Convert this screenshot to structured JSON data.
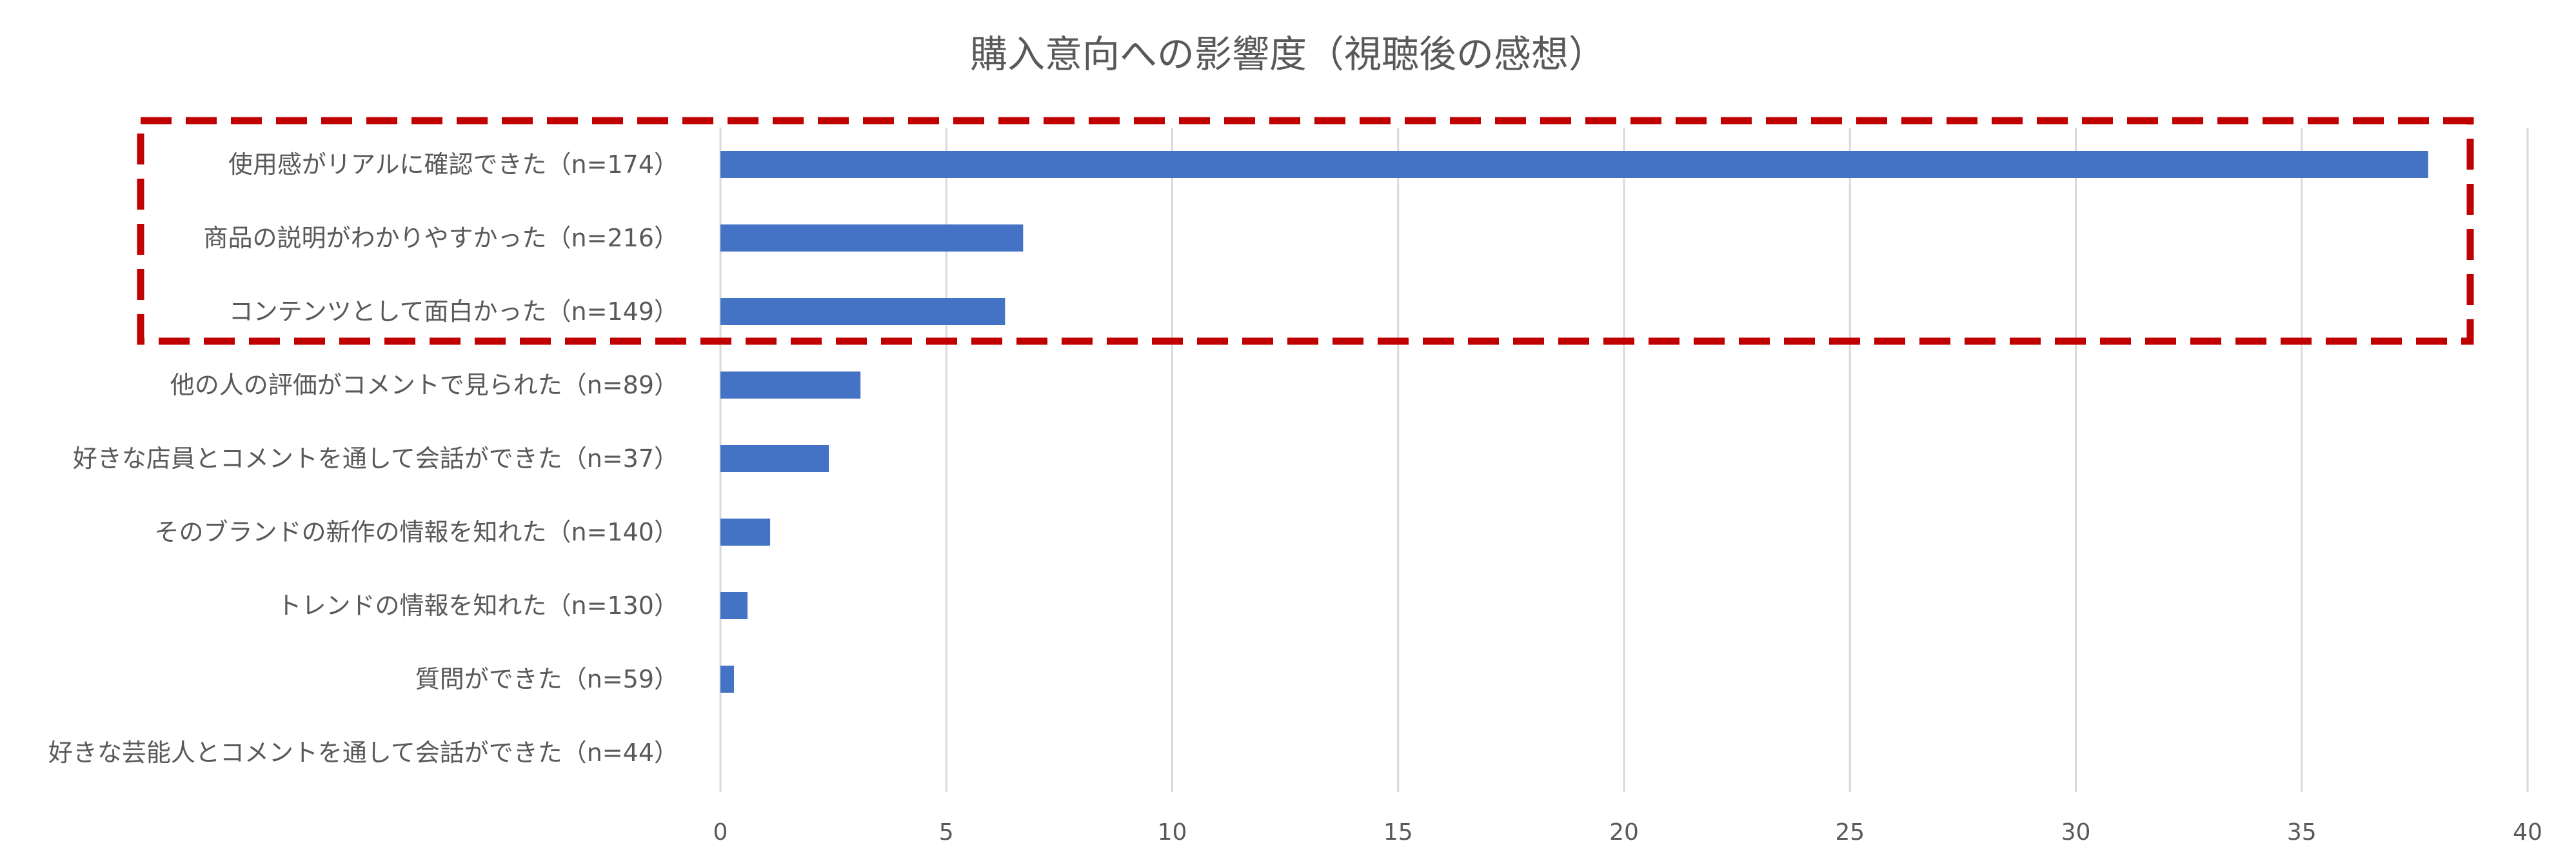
{
  "chart_data": {
    "type": "bar",
    "orientation": "horizontal",
    "title": "購入意向への影響度（視聴後の感想）",
    "xlabel": "",
    "ylabel": "",
    "xlim": [
      0,
      40
    ],
    "x_ticks": [
      0,
      5,
      10,
      15,
      20,
      25,
      30,
      35,
      40
    ],
    "grid": "vertical",
    "legend": "none",
    "bar_color": "#4472c4",
    "highlight_color": "#c00000",
    "categories": [
      "使用感がリアルに確認できた（n=174）",
      "商品の説明がわかりやすかった（n=216）",
      "コンテンツとして面白かった（n=149）",
      "他の人の評価がコメントで見られた（n=89）",
      "好きな店員とコメントを通して会話ができた（n=37）",
      "そのブランドの新作の情報を知れた（n=140）",
      "トレンドの情報を知れた（n=130）",
      "質問ができた（n=59）",
      "好きな芸能人とコメントを通して会話ができた（n=44）"
    ],
    "values": [
      37.8,
      6.7,
      6.3,
      3.1,
      2.4,
      1.1,
      0.6,
      0.3,
      0
    ],
    "highlighted_categories": [
      0,
      1,
      2
    ]
  }
}
